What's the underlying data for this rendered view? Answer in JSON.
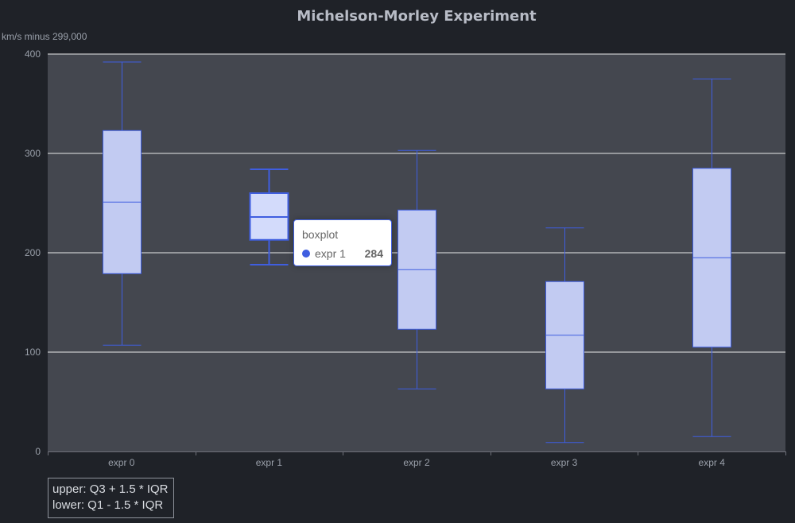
{
  "chart_data": {
    "type": "boxplot",
    "title": "Michelson-Morley Experiment",
    "ylabel": "km/s minus 299,000",
    "ylim": [
      0,
      400
    ],
    "yticks": [
      "0",
      "100",
      "200",
      "300",
      "400"
    ],
    "categories": [
      "expr 0",
      "expr 1",
      "expr 2",
      "expr 3",
      "expr 4"
    ],
    "boxes": [
      {
        "name": "expr 0",
        "low": 107,
        "q1": 179,
        "median": 251,
        "q3": 323,
        "high": 392
      },
      {
        "name": "expr 1",
        "low": 188,
        "q1": 213,
        "median": 236,
        "q3": 260,
        "high": 284
      },
      {
        "name": "expr 2",
        "low": 63,
        "q1": 123,
        "median": 183,
        "q3": 243,
        "high": 303
      },
      {
        "name": "expr 3",
        "low": 9,
        "q1": 63,
        "median": 117,
        "q3": 171,
        "high": 225
      },
      {
        "name": "expr 4",
        "low": 15,
        "q1": 105,
        "median": 195,
        "q3": 285,
        "high": 375
      }
    ],
    "highlighted_index": 1,
    "grid": true,
    "colors": {
      "background": "#1f2228",
      "plot_background": "#44474f",
      "box_fill": "#c2cbf2",
      "box_fill_highlight": "#d3dbfb",
      "box_stroke": "#3f5ee0",
      "grid": "#e8e8e8"
    }
  },
  "tooltip": {
    "title": "boxplot",
    "series_name": "expr 1",
    "value": "284",
    "marker_color": "#3f5ee0"
  },
  "note": {
    "line1": "upper: Q3 + 1.5 * IQR",
    "line2": "lower: Q1 - 1.5 * IQR"
  }
}
